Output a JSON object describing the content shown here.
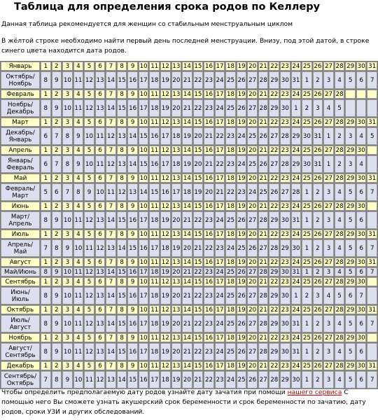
{
  "title": "Таблица для определения срока родов по Келлеру",
  "subtitle": "Данная таблица рекомендуется для женщин со стабильным менструальным циклом",
  "intro": "В жёлтой строке необходимо найти первый день последней менструации. Внизу, под этой датой, в строке синего цвета находится дата родов.",
  "footer": {
    "before": "Чтобы определить предполагаемую дату родов узнайте дату зачатия при помощи ",
    "link": "нашего сервиса",
    "after": " С помощью него Вы сможете узнать акушерский срок беременности и срок беременности по зачатию, дату родов, сроки УЗИ и других обследований."
  },
  "rows": [
    {
      "type": "m",
      "label": "Январь",
      "count": 31
    },
    {
      "type": "d",
      "lines": [
        "Октябрь/",
        "Ноябрь"
      ],
      "values": [
        8,
        9,
        10,
        11,
        12,
        13,
        14,
        15,
        16,
        17,
        18,
        19,
        20,
        21,
        22,
        23,
        24,
        25,
        26,
        27,
        28,
        29,
        30,
        31,
        1,
        2,
        3,
        4,
        5,
        6,
        7
      ]
    },
    {
      "type": "m",
      "label": "Февраль",
      "count": 28
    },
    {
      "type": "d",
      "lines": [
        "Ноябрь/",
        "Декабрь"
      ],
      "values": [
        8,
        9,
        10,
        11,
        12,
        13,
        14,
        15,
        16,
        17,
        18,
        19,
        20,
        21,
        22,
        23,
        24,
        25,
        26,
        27,
        28,
        29,
        30,
        1,
        2,
        3,
        4,
        5
      ]
    },
    {
      "type": "m",
      "label": "Март",
      "count": 31
    },
    {
      "type": "d",
      "lines": [
        "Декабрь/",
        "Январь"
      ],
      "values": [
        6,
        7,
        8,
        9,
        10,
        11,
        12,
        13,
        14,
        15,
        16,
        17,
        18,
        19,
        20,
        21,
        22,
        23,
        24,
        25,
        26,
        27,
        28,
        29,
        30,
        31,
        1,
        2,
        3,
        4,
        5
      ]
    },
    {
      "type": "m",
      "label": "Апрель",
      "count": 30
    },
    {
      "type": "d",
      "lines": [
        "Январь/",
        "Февраль"
      ],
      "values": [
        6,
        7,
        8,
        9,
        10,
        11,
        12,
        13,
        14,
        15,
        16,
        17,
        18,
        19,
        20,
        21,
        22,
        23,
        24,
        25,
        26,
        27,
        28,
        29,
        30,
        31,
        1,
        2,
        3,
        4
      ]
    },
    {
      "type": "m",
      "label": "Май",
      "count": 31
    },
    {
      "type": "d",
      "lines": [
        "Февраль/",
        "Март"
      ],
      "values": [
        5,
        6,
        7,
        8,
        9,
        10,
        11,
        12,
        13,
        14,
        15,
        16,
        17,
        18,
        19,
        20,
        21,
        22,
        23,
        24,
        25,
        26,
        27,
        28,
        1,
        2,
        3,
        4,
        5,
        6,
        7
      ]
    },
    {
      "type": "m",
      "label": "Июнь",
      "count": 30
    },
    {
      "type": "d",
      "lines": [
        "Март/",
        "Апрель"
      ],
      "values": [
        8,
        9,
        10,
        11,
        12,
        13,
        14,
        15,
        16,
        17,
        18,
        19,
        20,
        21,
        22,
        23,
        24,
        25,
        26,
        27,
        28,
        29,
        30,
        31,
        1,
        2,
        3,
        4,
        5,
        6
      ]
    },
    {
      "type": "m",
      "label": "Июль",
      "count": 31
    },
    {
      "type": "d",
      "lines": [
        "Апрель/",
        "Май"
      ],
      "values": [
        7,
        8,
        9,
        10,
        11,
        12,
        13,
        14,
        15,
        16,
        17,
        18,
        19,
        20,
        21,
        22,
        23,
        24,
        25,
        26,
        27,
        28,
        29,
        30,
        1,
        2,
        3,
        4,
        5,
        6,
        7
      ]
    },
    {
      "type": "m",
      "label": "Август",
      "count": 31
    },
    {
      "type": "d",
      "lines": [
        "Май/Июнь"
      ],
      "values": [
        8,
        9,
        10,
        11,
        12,
        13,
        14,
        15,
        16,
        17,
        18,
        19,
        20,
        21,
        22,
        23,
        24,
        25,
        26,
        27,
        28,
        29,
        30,
        31,
        1,
        2,
        3,
        4,
        5,
        6,
        7
      ]
    },
    {
      "type": "m",
      "label": "Сентябрь",
      "count": 30
    },
    {
      "type": "d",
      "lines": [
        "Июнь/",
        "Июль"
      ],
      "values": [
        8,
        9,
        10,
        11,
        12,
        13,
        14,
        15,
        16,
        17,
        18,
        19,
        20,
        21,
        22,
        23,
        24,
        25,
        26,
        27,
        28,
        29,
        30,
        1,
        2,
        3,
        4,
        5,
        6,
        7
      ]
    },
    {
      "type": "m",
      "label": "Октябрь",
      "count": 31
    },
    {
      "type": "d",
      "lines": [
        "Июль/",
        "Август"
      ],
      "values": [
        8,
        9,
        10,
        11,
        12,
        13,
        14,
        15,
        16,
        17,
        18,
        19,
        20,
        21,
        22,
        23,
        24,
        25,
        26,
        27,
        28,
        29,
        30,
        31,
        1,
        2,
        3,
        4,
        5,
        6,
        7
      ]
    },
    {
      "type": "m",
      "label": "Ноябрь",
      "count": 30
    },
    {
      "type": "d",
      "lines": [
        "Август/",
        "Сентябрь"
      ],
      "values": [
        8,
        9,
        10,
        11,
        12,
        13,
        14,
        15,
        16,
        17,
        18,
        19,
        20,
        21,
        22,
        23,
        24,
        25,
        26,
        27,
        28,
        29,
        30,
        31,
        1,
        2,
        3,
        4,
        5,
        6
      ]
    },
    {
      "type": "m",
      "label": "Декабрь",
      "count": 31
    },
    {
      "type": "d",
      "lines": [
        "Сентябрь/",
        "Октябрь"
      ],
      "values": [
        7,
        8,
        9,
        10,
        11,
        12,
        13,
        14,
        15,
        16,
        17,
        18,
        19,
        20,
        21,
        22,
        23,
        24,
        25,
        26,
        27,
        28,
        29,
        30,
        1,
        2,
        3,
        4,
        5,
        6,
        7
      ]
    }
  ],
  "colors": {
    "month_row": "#fdfdc4",
    "date_row": "#dcdff0",
    "link": "#cc0000"
  }
}
